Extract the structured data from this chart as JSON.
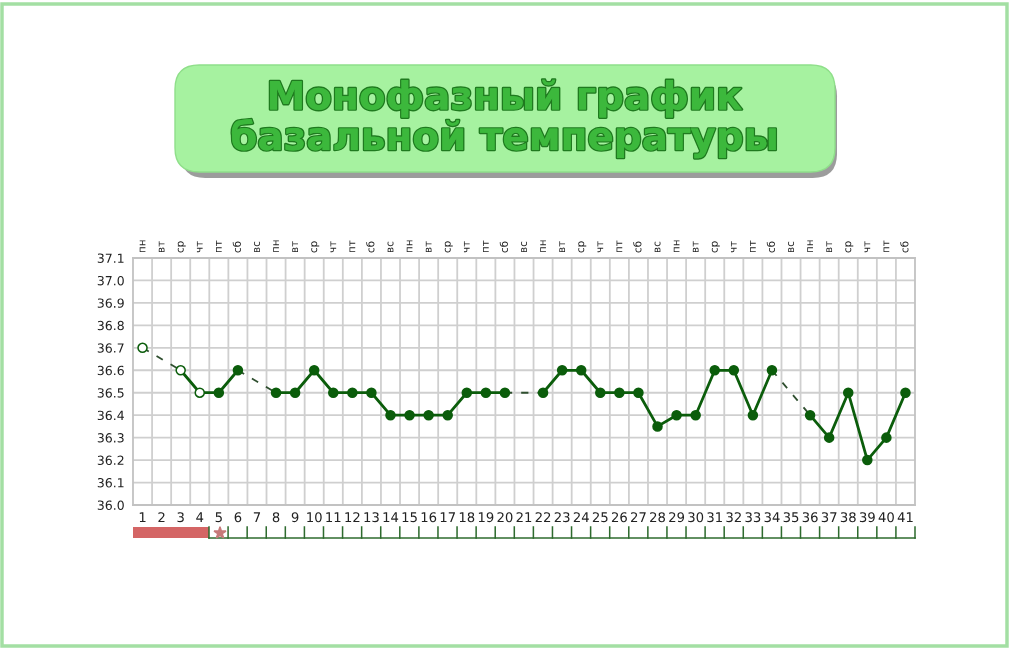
{
  "chart_data": {
    "type": "line",
    "title": "Монофазный график базальной температуры",
    "categories": [
      "1",
      "2",
      "3",
      "4",
      "5",
      "6",
      "7",
      "8",
      "9",
      "10",
      "11",
      "12",
      "13",
      "14",
      "15",
      "16",
      "17",
      "18",
      "19",
      "20",
      "21",
      "22",
      "23",
      "24",
      "25",
      "26",
      "27",
      "28",
      "29",
      "30",
      "31",
      "32",
      "33",
      "34",
      "35",
      "36",
      "37",
      "38",
      "39",
      "40",
      "41"
    ],
    "series": [
      {
        "color": "#0b5d0b",
        "values": [
          36.7,
          null,
          36.6,
          36.5,
          36.5,
          36.6,
          null,
          36.5,
          36.5,
          36.6,
          36.5,
          36.5,
          36.5,
          36.4,
          36.4,
          36.4,
          36.4,
          36.5,
          36.5,
          36.5,
          null,
          36.5,
          36.6,
          36.6,
          36.5,
          36.5,
          36.5,
          36.35,
          36.4,
          36.4,
          36.6,
          36.6,
          36.4,
          36.6,
          null,
          36.4,
          36.3,
          36.5,
          36.2,
          36.3,
          36.5
        ],
        "colors": [
          "#ffffff",
          null,
          "#ffffff",
          "#ffffff",
          "#0b5d0b",
          "#0b5d0b",
          null,
          "#0b5d0b",
          "#0b5d0b",
          "#0b5d0b",
          "#0b5d0b",
          "#0b5d0b",
          "#0b5d0b",
          "#0b5d0b",
          "#0b5d0b",
          "#0b5d0b",
          "#0b5d0b",
          "#0b5d0b",
          "#0b5d0b",
          "#0b5d0b",
          null,
          "#0b5d0b",
          "#0b5d0b",
          "#0b5d0b",
          "#0b5d0b",
          "#0b5d0b",
          "#0b5d0b",
          "#0b5d0b",
          "#0b5d0b",
          "#0b5d0b",
          "#0b5d0b",
          "#0b5d0b",
          "#0b5d0b",
          "#0b5d0b",
          null,
          "#0b5d0b",
          "#0b5d0b",
          "#0b5d0b",
          "#0b5d0b",
          "#0b5d0b",
          "#0b5d0b"
        ]
      },
      {
        "color": "#2f4f2f",
        "line_style": "dashed",
        "marker": "none",
        "values": [
          36.7,
          null,
          36.6,
          null,
          null,
          null,
          null,
          null,
          null,
          null,
          null,
          null,
          null,
          null,
          null,
          null,
          null,
          null,
          null,
          null,
          null,
          null,
          null,
          null,
          null,
          null,
          null,
          null,
          null,
          null,
          null,
          null,
          null,
          null,
          null,
          null,
          null,
          null,
          null,
          null,
          null
        ]
      },
      {
        "color": "#2f4f2f",
        "line_style": "dashed",
        "marker": "none",
        "values": [
          null,
          null,
          null,
          null,
          null,
          36.6,
          null,
          36.5,
          null,
          null,
          null,
          null,
          null,
          null,
          null,
          null,
          null,
          null,
          null,
          null,
          null,
          null,
          null,
          null,
          null,
          null,
          null,
          null,
          null,
          null,
          null,
          null,
          null,
          null,
          null,
          null,
          null,
          null,
          null,
          null,
          null
        ]
      },
      {
        "color": "#2f4f2f",
        "line_style": "dashed",
        "marker": "none",
        "values": [
          null,
          null,
          null,
          null,
          null,
          null,
          null,
          null,
          null,
          null,
          null,
          null,
          null,
          null,
          null,
          null,
          null,
          null,
          null,
          36.5,
          null,
          36.5,
          null,
          null,
          null,
          null,
          null,
          null,
          null,
          null,
          null,
          null,
          null,
          null,
          null,
          null,
          null,
          null,
          null,
          null,
          null
        ]
      },
      {
        "color": "#2f4f2f",
        "line_style": "dashed",
        "marker": "none",
        "values": [
          null,
          null,
          null,
          null,
          null,
          null,
          null,
          null,
          null,
          null,
          null,
          null,
          null,
          null,
          null,
          null,
          null,
          null,
          null,
          null,
          null,
          null,
          null,
          null,
          null,
          null,
          null,
          null,
          null,
          null,
          null,
          null,
          null,
          36.6,
          null,
          36.4,
          null,
          null,
          null,
          null,
          null
        ]
      }
    ],
    "marker": "circle",
    "line_style": "solid",
    "grid": true,
    "ylim": [
      36.0,
      37.1
    ],
    "yticks": [
      {
        "value": 36.0,
        "label": "36.0"
      },
      36.1,
      36.2,
      36.3,
      36.4,
      36.5,
      36.6,
      36.7,
      36.8,
      36.9,
      {
        "value": 37.0,
        "label": "37.0"
      },
      37.1
    ],
    "annotations": [
      "пн",
      "вт",
      "ср",
      "чт",
      "пт",
      "сб",
      "вс",
      "пн",
      "вт",
      "ср",
      "чт",
      "пт",
      "сб",
      "вс",
      "пн",
      "вт",
      "ср",
      "чт",
      "пт",
      "сб",
      "вс",
      "пн",
      "вт",
      "ср",
      "чт",
      "пт",
      "сб",
      "вс",
      "пн",
      "вт",
      "ср",
      "чт",
      "пт",
      "сб",
      "вс",
      "пн",
      "вт",
      "ср",
      "чт",
      "пт",
      "сб"
    ]
  }
}
